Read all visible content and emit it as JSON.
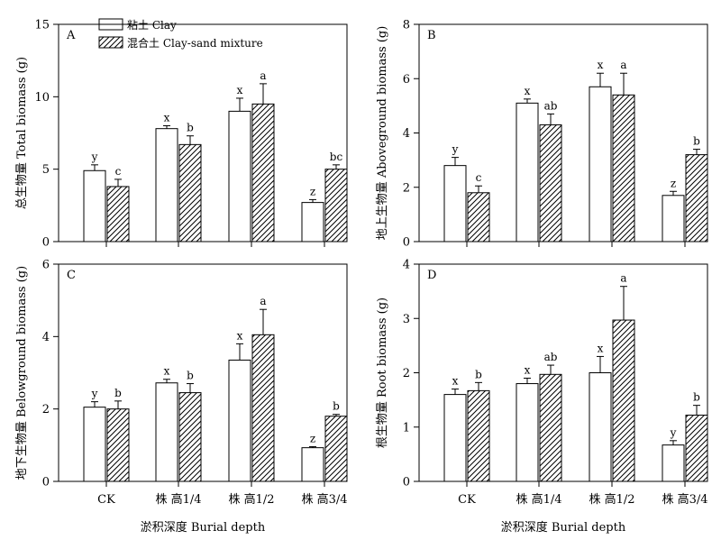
{
  "legend": {
    "entries": [
      {
        "label": "粘土 Clay",
        "pattern": "solid-white"
      },
      {
        "label": "混合土 Clay-sand mixture",
        "pattern": "hatched"
      }
    ]
  },
  "shared_xlabel": "淤积深度 Burial depth",
  "chart_data": [
    {
      "type": "bar",
      "panel": "A",
      "categories": [
        "CK",
        "株 高1/4",
        "株 高1/2",
        "株 高3/4"
      ],
      "ylabel": "总生物量 Total biomass (g)",
      "ylim": [
        0,
        15
      ],
      "yticks": [
        0,
        5,
        10,
        15
      ],
      "series": [
        {
          "name": "粘土 Clay",
          "values": [
            4.9,
            7.8,
            9.0,
            2.7
          ],
          "errors": [
            0.4,
            0.2,
            0.9,
            0.2
          ],
          "letters": [
            "y",
            "x",
            "x",
            "z"
          ]
        },
        {
          "name": "混合土 Clay-sand mixture",
          "values": [
            3.8,
            6.7,
            9.5,
            5.0
          ],
          "errors": [
            0.5,
            0.6,
            1.4,
            0.3
          ],
          "letters": [
            "c",
            "b",
            "a",
            "bc"
          ]
        }
      ]
    },
    {
      "type": "bar",
      "panel": "B",
      "categories": [
        "CK",
        "株 高1/4",
        "株 高1/2",
        "株 高3/4"
      ],
      "ylabel": "地上生物量 Aboveground biomass (g)",
      "ylim": [
        0,
        8
      ],
      "yticks": [
        0,
        2,
        4,
        6,
        8
      ],
      "series": [
        {
          "name": "粘土 Clay",
          "values": [
            2.8,
            5.1,
            5.7,
            1.7
          ],
          "errors": [
            0.3,
            0.15,
            0.5,
            0.15
          ],
          "letters": [
            "y",
            "x",
            "x",
            "z"
          ]
        },
        {
          "name": "混合土 Clay-sand mixture",
          "values": [
            1.8,
            4.3,
            5.4,
            3.2
          ],
          "errors": [
            0.25,
            0.4,
            0.8,
            0.2
          ],
          "letters": [
            "c",
            "ab",
            "a",
            "b"
          ]
        }
      ]
    },
    {
      "type": "bar",
      "panel": "C",
      "categories": [
        "CK",
        "株 高1/4",
        "株 高1/2",
        "株 高3/4"
      ],
      "ylabel": "地下生物量 Belowground biomass (g)",
      "ylim": [
        0,
        6
      ],
      "yticks": [
        0,
        2,
        4,
        6
      ],
      "series": [
        {
          "name": "粘土 Clay",
          "values": [
            2.05,
            2.72,
            3.35,
            0.93
          ],
          "errors": [
            0.15,
            0.1,
            0.45,
            0.03
          ],
          "letters": [
            "y",
            "x",
            "x",
            "z"
          ]
        },
        {
          "name": "混合土 Clay-sand mixture",
          "values": [
            2.0,
            2.45,
            4.05,
            1.8
          ],
          "errors": [
            0.22,
            0.25,
            0.7,
            0.05
          ],
          "letters": [
            "b",
            "b",
            "a",
            "b"
          ]
        }
      ]
    },
    {
      "type": "bar",
      "panel": "D",
      "categories": [
        "CK",
        "株 高1/4",
        "株 高1/2",
        "株 高3/4"
      ],
      "ylabel": "根生物量 Root biomass (g)",
      "ylim": [
        0,
        4
      ],
      "yticks": [
        0,
        1,
        2,
        3,
        4
      ],
      "series": [
        {
          "name": "粘土 Clay",
          "values": [
            1.6,
            1.8,
            2.0,
            0.67
          ],
          "errors": [
            0.1,
            0.1,
            0.3,
            0.08
          ],
          "letters": [
            "x",
            "x",
            "x",
            "y"
          ]
        },
        {
          "name": "混合土 Clay-sand mixture",
          "values": [
            1.67,
            1.97,
            2.97,
            1.22
          ],
          "errors": [
            0.15,
            0.17,
            0.62,
            0.18
          ],
          "letters": [
            "b",
            "ab",
            "a",
            "b"
          ]
        }
      ]
    }
  ]
}
